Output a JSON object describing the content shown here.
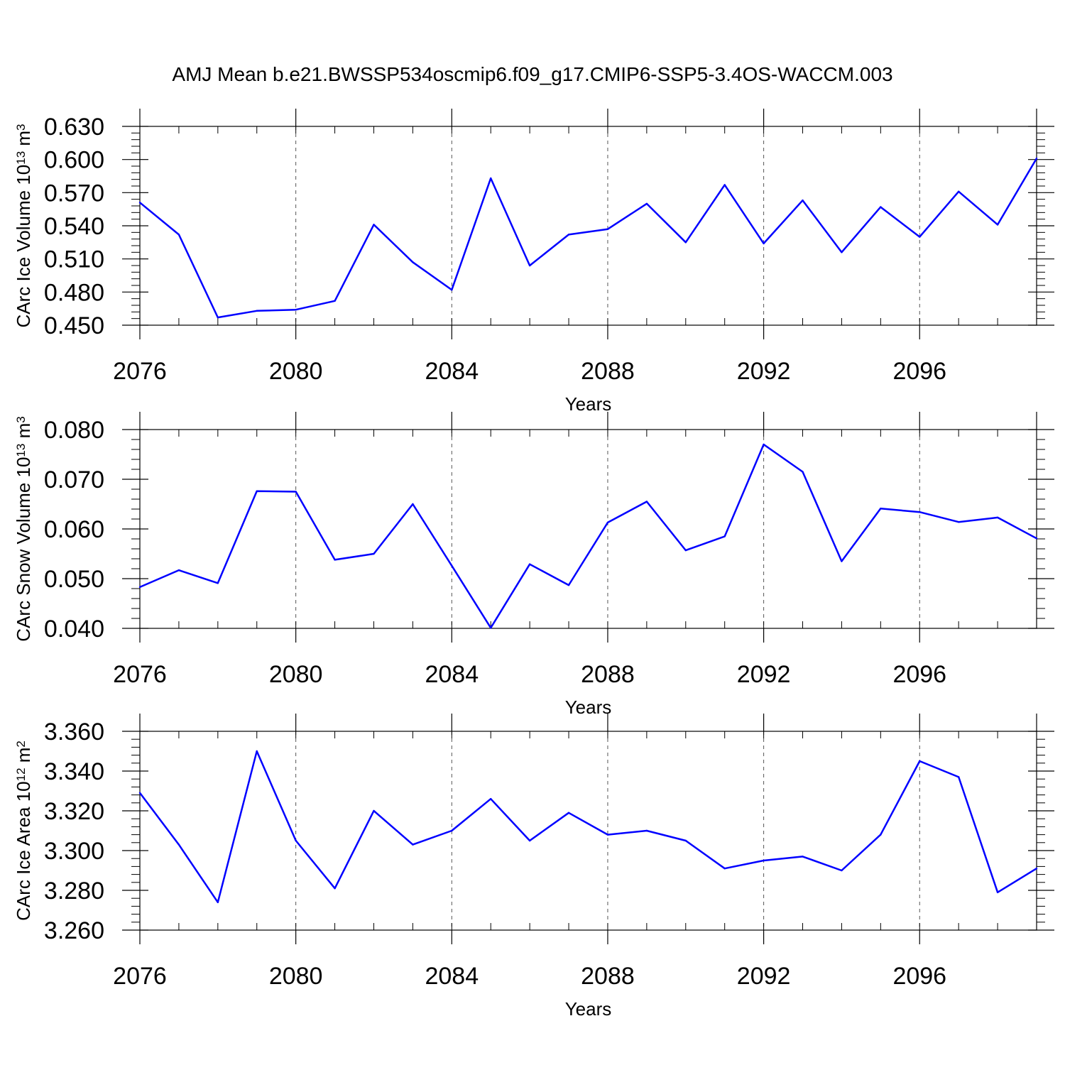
{
  "title": "AMJ Mean b.e21.BWSSP534oscmip6.f09_g17.CMIP6-SSP5-3.4OS-WACCM.003",
  "colors": {
    "line": "#0000ff",
    "axis": "#000000",
    "grid": "#555555"
  },
  "chart_data": [
    {
      "type": "line",
      "ylabel": {
        "text": "CArc Ice Volume 10",
        "sup": "13",
        "unit": " m",
        "unit_sup": "3"
      },
      "xlabel": "Years",
      "xlim": [
        2076,
        2099
      ],
      "ylim": [
        0.45,
        0.63
      ],
      "yticks": [
        "0.450",
        "0.480",
        "0.510",
        "0.540",
        "0.570",
        "0.600",
        "0.630"
      ],
      "xticks": [
        "2076",
        "2080",
        "2084",
        "2088",
        "2092",
        "2096"
      ],
      "grid": "vertical dashed at major x ticks",
      "x": [
        2076,
        2077,
        2078,
        2079,
        2080,
        2081,
        2082,
        2083,
        2084,
        2085,
        2086,
        2087,
        2088,
        2089,
        2090,
        2091,
        2092,
        2093,
        2094,
        2095,
        2096,
        2097,
        2098,
        2099
      ],
      "values": [
        0.561,
        0.532,
        0.457,
        0.463,
        0.464,
        0.472,
        0.541,
        0.507,
        0.482,
        0.583,
        0.504,
        0.532,
        0.537,
        0.56,
        0.525,
        0.577,
        0.524,
        0.563,
        0.516,
        0.557,
        0.53,
        0.571,
        0.541,
        0.601
      ]
    },
    {
      "type": "line",
      "ylabel": {
        "text": "CArc Snow Volume 10",
        "sup": "13",
        "unit": " m",
        "unit_sup": "3"
      },
      "xlabel": "Years",
      "xlim": [
        2076,
        2099
      ],
      "ylim": [
        0.04,
        0.08
      ],
      "yticks": [
        "0.040",
        "0.050",
        "0.060",
        "0.070",
        "0.080"
      ],
      "xticks": [
        "2076",
        "2080",
        "2084",
        "2088",
        "2092",
        "2096"
      ],
      "grid": "vertical dashed at major x ticks",
      "x": [
        2076,
        2077,
        2078,
        2079,
        2080,
        2081,
        2082,
        2083,
        2084,
        2085,
        2086,
        2087,
        2088,
        2089,
        2090,
        2091,
        2092,
        2093,
        2094,
        2095,
        2096,
        2097,
        2098,
        2099
      ],
      "values": [
        0.0483,
        0.0517,
        0.0491,
        0.0676,
        0.0675,
        0.0538,
        0.055,
        0.065,
        0.0526,
        0.0401,
        0.0529,
        0.0487,
        0.0613,
        0.0655,
        0.0557,
        0.0585,
        0.077,
        0.0715,
        0.0535,
        0.0641,
        0.0634,
        0.0614,
        0.0623,
        0.0581
      ]
    },
    {
      "type": "line",
      "ylabel": {
        "text": "CArc Ice Area 10",
        "sup": "12",
        "unit": " m",
        "unit_sup": "2"
      },
      "xlabel": "Years",
      "xlim": [
        2076,
        2099
      ],
      "ylim": [
        3.26,
        3.36
      ],
      "yticks": [
        "3.260",
        "3.280",
        "3.300",
        "3.320",
        "3.340",
        "3.360"
      ],
      "xticks": [
        "2076",
        "2080",
        "2084",
        "2088",
        "2092",
        "2096"
      ],
      "grid": "vertical dashed at major x ticks",
      "x": [
        2076,
        2077,
        2078,
        2079,
        2080,
        2081,
        2082,
        2083,
        2084,
        2085,
        2086,
        2087,
        2088,
        2089,
        2090,
        2091,
        2092,
        2093,
        2094,
        2095,
        2096,
        2097,
        2098,
        2099
      ],
      "values": [
        3.329,
        3.303,
        3.274,
        3.35,
        3.305,
        3.281,
        3.32,
        3.303,
        3.31,
        3.326,
        3.305,
        3.319,
        3.308,
        3.31,
        3.305,
        3.291,
        3.295,
        3.297,
        3.29,
        3.308,
        3.345,
        3.337,
        3.279,
        3.291
      ]
    }
  ]
}
